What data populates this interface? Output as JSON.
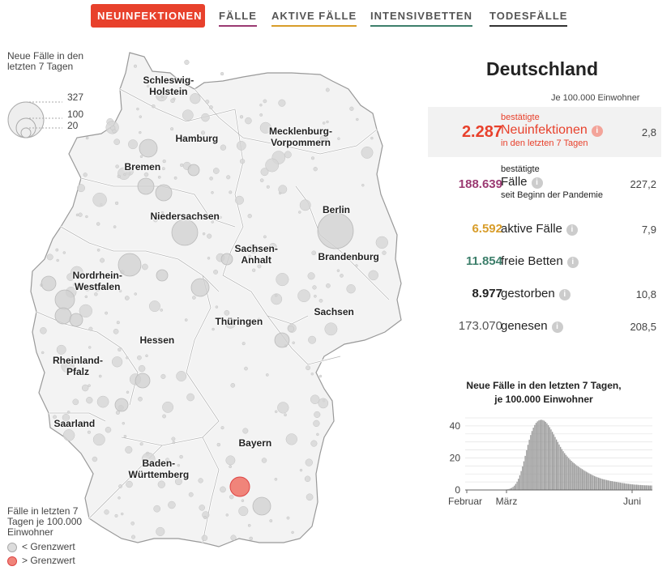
{
  "tabs": [
    {
      "label": "NEUINFEKTIONEN",
      "color": "#e8412c",
      "active": true
    },
    {
      "label": "FÄLLE",
      "color": "#9b3a72",
      "active": false
    },
    {
      "label": "AKTIVE FÄLLE",
      "color": "#d89d2a",
      "active": false
    },
    {
      "label": "INTENSIVBETTEN",
      "color": "#3d7f6b",
      "active": false
    },
    {
      "label": "TODESFÄLLE",
      "color": "#333333",
      "active": false
    }
  ],
  "map": {
    "states": [
      {
        "label": "Schleswig-\nHolstein"
      },
      {
        "label": "Hamburg"
      },
      {
        "label": "Mecklenburg-\nVorpommern"
      },
      {
        "label": "Bremen"
      },
      {
        "label": "Berlin"
      },
      {
        "label": "Niedersachsen"
      },
      {
        "label": "Sachsen-\nAnhalt"
      },
      {
        "label": "Brandenburg"
      },
      {
        "label": "Nordrhein-\nWestfalen"
      },
      {
        "label": "Sachsen"
      },
      {
        "label": "Thüringen"
      },
      {
        "label": "Hessen"
      },
      {
        "label": "Rheinland-\nPfalz"
      },
      {
        "label": "Saarland"
      },
      {
        "label": "Bayern"
      },
      {
        "label": "Baden-\nWürttemberg"
      }
    ],
    "size_legend": {
      "title": "Neue Fälle in den letzten 7 Tagen",
      "values": [
        "327",
        "100",
        "20"
      ]
    },
    "threshold_legend": {
      "title": "Fälle in letzten 7 Tagen je 100.000 Einwohner",
      "below": "< Grenzwert",
      "above": "> Grenzwert",
      "below_color": "#dcdcdc",
      "above_color": "#f0847a"
    }
  },
  "panel": {
    "region": "Deutschland",
    "per_note": "Je 100.000 Einwohner",
    "stats": [
      {
        "value": "2.287",
        "top": "bestätigte",
        "main": "Neuinfektionen",
        "bottom": "in den letzten 7 Tagen",
        "rate": "2,8",
        "color": "#e8412c",
        "info": "i"
      },
      {
        "value": "188.639",
        "top": "bestätigte",
        "main": "Fälle",
        "bottom": "seit Beginn der Pandemie",
        "rate": "227,2",
        "color": "#9b3a72",
        "info": "i"
      },
      {
        "value": "6.592",
        "main": "aktive Fälle",
        "rate": "7,9",
        "color": "#d89d2a",
        "info": "i"
      },
      {
        "value": "11.854",
        "main": "freie Betten",
        "rate": "",
        "color": "#3d7f6b",
        "info": "i"
      },
      {
        "value": "8.977",
        "main": "gestorben",
        "rate": "10,8",
        "color": "#222222",
        "info": "i"
      },
      {
        "value": "173.070",
        "main": "genesen",
        "rate": "208,5",
        "color": "#555555",
        "info": "i"
      }
    ]
  },
  "chart_data": {
    "type": "bar",
    "title": "Neue Fälle in den letzten 7 Tagen,\nje 100.000 Einwohner",
    "ylim": [
      0,
      45
    ],
    "yticks": [
      0,
      20,
      40
    ],
    "xticks": [
      "Februar",
      "März",
      "Juni"
    ],
    "x_range": [
      "2020-02-01",
      "2020-06-10"
    ],
    "series": [
      {
        "values": [
          0.3,
          0.4,
          0.6,
          0.9,
          1.3,
          1.9,
          2.7,
          3.8,
          5.2,
          7.0,
          9.2,
          11.8,
          14.7,
          17.9,
          21.3,
          24.8,
          28.2,
          31.4,
          34.3,
          36.8,
          38.9,
          40.6,
          41.9,
          42.8,
          43.4,
          43.7,
          43.8,
          43.6,
          43.2,
          42.5,
          41.6,
          40.5,
          39.2,
          37.8,
          36.3,
          34.7,
          33.1,
          31.5,
          29.9,
          28.4,
          26.9,
          25.5,
          24.2,
          23.0,
          21.9,
          20.9,
          19.9,
          19.0,
          18.2,
          17.4,
          16.7,
          16.0,
          15.3,
          14.7,
          14.1,
          13.5,
          13.0,
          12.4,
          11.9,
          11.4,
          10.9,
          10.4,
          9.9,
          9.5,
          9.1,
          8.7,
          8.3,
          8.0,
          7.7,
          7.4,
          7.1,
          6.8,
          6.6,
          6.4,
          6.2,
          6.0,
          5.8,
          5.6,
          5.5,
          5.3,
          5.2,
          5.0,
          4.9,
          4.7,
          4.6,
          4.4,
          4.3,
          4.2,
          4.0,
          3.9,
          3.8,
          3.7,
          3.6,
          3.5,
          3.4,
          3.3,
          3.3,
          3.2,
          3.1,
          3.1,
          3.0,
          3.0,
          2.9,
          2.9,
          2.9,
          2.8,
          2.8,
          2.8
        ]
      }
    ],
    "bar_color": "#9a9a9a"
  }
}
